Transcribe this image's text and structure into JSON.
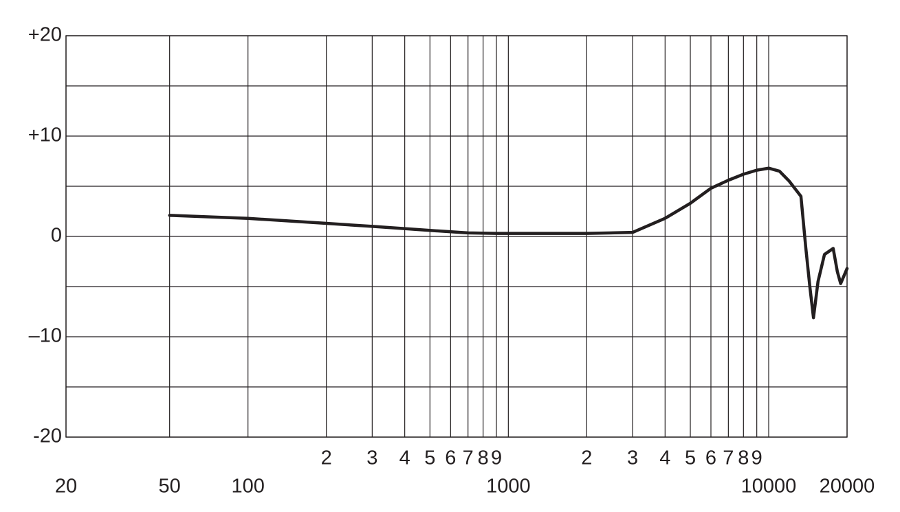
{
  "chart_data": {
    "type": "line",
    "x": [
      50,
      100,
      200,
      300,
      500,
      700,
      900,
      1000,
      2000,
      3000,
      4000,
      5000,
      6000,
      7000,
      8000,
      9000,
      10000,
      11000,
      12000,
      13300,
      13880,
      14390,
      14860,
      15470,
      16380,
      17690,
      18350,
      18900,
      20000
    ],
    "series": [
      {
        "color": "#231f20",
        "values": [
          2.1,
          1.8,
          1.3,
          1.0,
          0.6,
          0.35,
          0.3,
          0.3,
          0.3,
          0.4,
          1.8,
          3.3,
          4.8,
          5.6,
          6.2,
          6.6,
          6.8,
          6.5,
          5.5,
          4.0,
          -1.1,
          -5.0,
          -8.1,
          -4.5,
          -1.8,
          -1.2,
          -3.5,
          -4.7,
          -3.2
        ]
      }
    ],
    "xscale": "log",
    "xlim": [
      20,
      20000
    ],
    "xticks": [
      20,
      50,
      100,
      {
        "value": 200,
        "label": "2"
      },
      {
        "value": 300,
        "label": "3"
      },
      {
        "value": 400,
        "label": "4"
      },
      {
        "value": 500,
        "label": "5"
      },
      {
        "value": 600,
        "label": "6"
      },
      {
        "value": 700,
        "label": "7"
      },
      {
        "value": 800,
        "label": "8"
      },
      {
        "value": 900,
        "label": "9"
      },
      1000,
      {
        "value": 2000,
        "label": "2"
      },
      {
        "value": 3000,
        "label": "3"
      },
      {
        "value": 4000,
        "label": "4"
      },
      {
        "value": 5000,
        "label": "5"
      },
      {
        "value": 6000,
        "label": "6"
      },
      {
        "value": 7000,
        "label": "7"
      },
      {
        "value": 8000,
        "label": "8"
      },
      {
        "value": 9000,
        "label": "9"
      },
      10000,
      20000
    ],
    "ylim": [
      -20,
      20
    ],
    "yticks": [
      {
        "value": 20,
        "label": "+20"
      },
      {
        "value": 10,
        "label": "+10"
      },
      0,
      {
        "value": -10,
        "label": "–10"
      },
      {
        "value": -20,
        "label": "-20"
      }
    ],
    "minor_yticks": [
      15,
      5,
      -5,
      -15
    ],
    "grid": true
  }
}
